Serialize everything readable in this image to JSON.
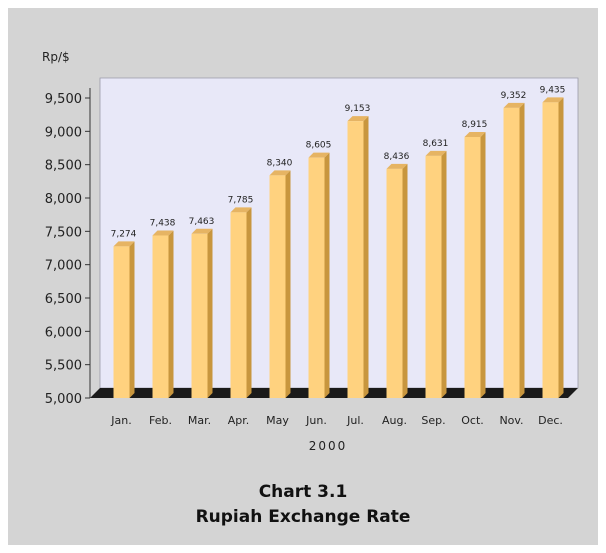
{
  "colors": {
    "background": "#d4d4d4",
    "plot_back": "#e8e8f8",
    "floor": "#1a1a1a",
    "bar_front": "#ffd27f",
    "bar_side": "#c8963e",
    "bar_top": "#e6b463"
  },
  "chart_data": {
    "type": "bar",
    "ylabel": "Rp/$",
    "xlabel": "2000",
    "categories": [
      "Jan.",
      "Feb.",
      "Mar.",
      "Apr.",
      "May",
      "Jun.",
      "Jul.",
      "Aug.",
      "Sep.",
      "Oct.",
      "Nov.",
      "Dec."
    ],
    "values": [
      7274,
      7438,
      7463,
      7785,
      8340,
      8605,
      9153,
      8436,
      8631,
      8915,
      9352,
      9435
    ],
    "value_labels": [
      "7,274",
      "7,438",
      "7,463",
      "7,785",
      "8,340",
      "8,605",
      "9,153",
      "8,436",
      "8,631",
      "8,915",
      "9,352",
      "9,435"
    ],
    "ylim": [
      5000,
      9500
    ],
    "yticks": [
      5000,
      5500,
      6000,
      6500,
      7000,
      7500,
      8000,
      8500,
      9000,
      9500
    ],
    "ytick_labels": [
      "5,000",
      "5,500",
      "6,000",
      "6,500",
      "7,000",
      "7,500",
      "8,000",
      "8,500",
      "9,000",
      "9,500"
    ],
    "style": "3d-bar",
    "grid": false,
    "legend": "none"
  },
  "caption": {
    "line1": "Chart 3.1",
    "line2": "Rupiah Exchange Rate"
  }
}
